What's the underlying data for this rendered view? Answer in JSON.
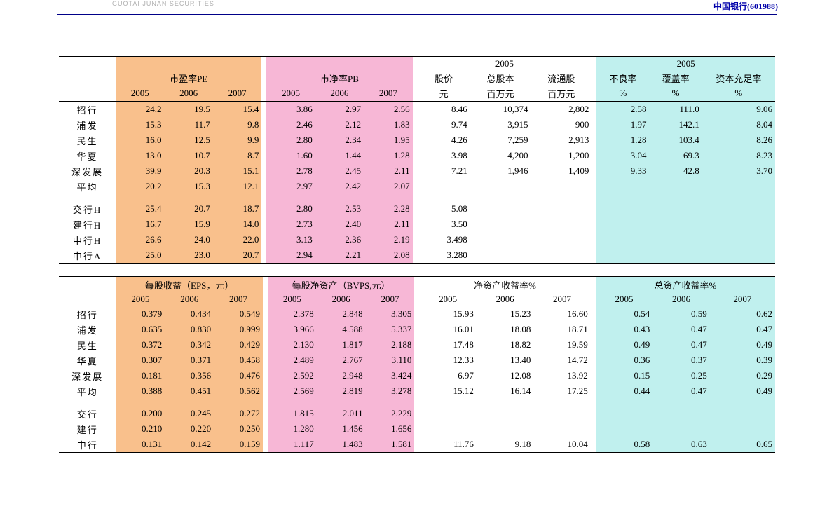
{
  "header": {
    "logo_text": "GUOTAI JUNAN SECURITIES",
    "stock_label": "中国银行(601988)"
  },
  "colors": {
    "orange": "#f9c08c",
    "pink": "#f7b7d6",
    "cyan": "#c0f0ee",
    "rule": "#000088"
  },
  "table1": {
    "sections": {
      "pe": {
        "label": "市盈率PE",
        "years": [
          "2005",
          "2006",
          "2007"
        ]
      },
      "pb": {
        "label": "市净率PB",
        "years": [
          "2005",
          "2006",
          "2007"
        ]
      },
      "mid": {
        "supertitle": "2005",
        "cols": [
          "股价",
          "总股本",
          "流通股"
        ],
        "units": [
          "元",
          "百万元",
          "百万元"
        ]
      },
      "r05": {
        "supertitle": "2005",
        "cols": [
          "不良率",
          "覆盖率",
          "资本充足率"
        ],
        "units": [
          "%",
          "%",
          "%"
        ]
      }
    },
    "rows": [
      {
        "name": "招行",
        "pe": [
          "24.2",
          "19.5",
          "15.4"
        ],
        "pb": [
          "3.86",
          "2.97",
          "2.56"
        ],
        "mid": [
          "8.46",
          "10,374",
          "2,802"
        ],
        "r": [
          "2.58",
          "111.0",
          "9.06"
        ]
      },
      {
        "name": "浦发",
        "pe": [
          "15.3",
          "11.7",
          "9.8"
        ],
        "pb": [
          "2.46",
          "2.12",
          "1.83"
        ],
        "mid": [
          "9.74",
          "3,915",
          "900"
        ],
        "r": [
          "1.97",
          "142.1",
          "8.04"
        ]
      },
      {
        "name": "民生",
        "pe": [
          "16.0",
          "12.5",
          "9.9"
        ],
        "pb": [
          "2.80",
          "2.34",
          "1.95"
        ],
        "mid": [
          "4.26",
          "7,259",
          "2,913"
        ],
        "r": [
          "1.28",
          "103.4",
          "8.26"
        ]
      },
      {
        "name": "华夏",
        "pe": [
          "13.0",
          "10.7",
          "8.7"
        ],
        "pb": [
          "1.60",
          "1.44",
          "1.28"
        ],
        "mid": [
          "3.98",
          "4,200",
          "1,200"
        ],
        "r": [
          "3.04",
          "69.3",
          "8.23"
        ]
      },
      {
        "name": "深发展",
        "pe": [
          "39.9",
          "20.3",
          "15.1"
        ],
        "pb": [
          "2.78",
          "2.45",
          "2.11"
        ],
        "mid": [
          "7.21",
          "1,946",
          "1,409"
        ],
        "r": [
          "9.33",
          "42.8",
          "3.70"
        ]
      },
      {
        "name": "平均",
        "pe": [
          "20.2",
          "15.3",
          "12.1"
        ],
        "pb": [
          "2.97",
          "2.42",
          "2.07"
        ],
        "mid": [
          "",
          "",
          ""
        ],
        "r": [
          "",
          "",
          ""
        ]
      },
      {
        "gap": true
      },
      {
        "name": "交行H",
        "pe": [
          "25.4",
          "20.7",
          "18.7"
        ],
        "pb": [
          "2.80",
          "2.53",
          "2.28"
        ],
        "mid": [
          "5.08",
          "",
          ""
        ],
        "r": [
          "",
          "",
          ""
        ]
      },
      {
        "name": "建行H",
        "pe": [
          "16.7",
          "15.9",
          "14.0"
        ],
        "pb": [
          "2.73",
          "2.40",
          "2.11"
        ],
        "mid": [
          "3.50",
          "",
          ""
        ],
        "r": [
          "",
          "",
          ""
        ]
      },
      {
        "name": "中行H",
        "pe": [
          "26.6",
          "24.0",
          "22.0"
        ],
        "pb": [
          "3.13",
          "2.36",
          "2.19"
        ],
        "mid": [
          "3.498",
          "",
          ""
        ],
        "r": [
          "",
          "",
          ""
        ]
      },
      {
        "name": "中行A",
        "pe": [
          "25.0",
          "23.0",
          "20.7"
        ],
        "pb": [
          "2.94",
          "2.21",
          "2.08"
        ],
        "mid": [
          "3.280",
          "",
          ""
        ],
        "r": [
          "",
          "",
          ""
        ]
      }
    ]
  },
  "table2": {
    "sections": {
      "eps": {
        "label": "每股收益（EPS，元）",
        "years": [
          "2005",
          "2006",
          "2007"
        ]
      },
      "bvps": {
        "label": "每股净资产（BVPS,元）",
        "years": [
          "2005",
          "2006",
          "2007"
        ]
      },
      "roe": {
        "label": "净资产收益率%",
        "years": [
          "2005",
          "2006",
          "2007"
        ]
      },
      "roa": {
        "label": "总资产收益率%",
        "years": [
          "2005",
          "2006",
          "2007"
        ]
      }
    },
    "rows": [
      {
        "name": "招行",
        "eps": [
          "0.379",
          "0.434",
          "0.549"
        ],
        "bvps": [
          "2.378",
          "2.848",
          "3.305"
        ],
        "roe": [
          "15.93",
          "15.23",
          "16.60"
        ],
        "roa": [
          "0.54",
          "0.59",
          "0.62"
        ]
      },
      {
        "name": "浦发",
        "eps": [
          "0.635",
          "0.830",
          "0.999"
        ],
        "bvps": [
          "3.966",
          "4.588",
          "5.337"
        ],
        "roe": [
          "16.01",
          "18.08",
          "18.71"
        ],
        "roa": [
          "0.43",
          "0.47",
          "0.47"
        ]
      },
      {
        "name": "民生",
        "eps": [
          "0.372",
          "0.342",
          "0.429"
        ],
        "bvps": [
          "2.130",
          "1.817",
          "2.188"
        ],
        "roe": [
          "17.48",
          "18.82",
          "19.59"
        ],
        "roa": [
          "0.49",
          "0.47",
          "0.49"
        ]
      },
      {
        "name": "华夏",
        "eps": [
          "0.307",
          "0.371",
          "0.458"
        ],
        "bvps": [
          "2.489",
          "2.767",
          "3.110"
        ],
        "roe": [
          "12.33",
          "13.40",
          "14.72"
        ],
        "roa": [
          "0.36",
          "0.37",
          "0.39"
        ]
      },
      {
        "name": "深发展",
        "eps": [
          "0.181",
          "0.356",
          "0.476"
        ],
        "bvps": [
          "2.592",
          "2.948",
          "3.424"
        ],
        "roe": [
          "6.97",
          "12.08",
          "13.92"
        ],
        "roa": [
          "0.15",
          "0.25",
          "0.29"
        ]
      },
      {
        "name": "平均",
        "eps": [
          "0.388",
          "0.451",
          "0.562"
        ],
        "bvps": [
          "2.569",
          "2.819",
          "3.278"
        ],
        "roe": [
          "15.12",
          "16.14",
          "17.25"
        ],
        "roa": [
          "0.44",
          "0.47",
          "0.49"
        ]
      },
      {
        "gap": true
      },
      {
        "name": "交行",
        "eps": [
          "0.200",
          "0.245",
          "0.272"
        ],
        "bvps": [
          "1.815",
          "2.011",
          "2.229"
        ],
        "roe": [
          "",
          "",
          ""
        ],
        "roa": [
          "",
          "",
          ""
        ]
      },
      {
        "name": "建行",
        "eps": [
          "0.210",
          "0.220",
          "0.250"
        ],
        "bvps": [
          "1.280",
          "1.456",
          "1.656"
        ],
        "roe": [
          "",
          "",
          ""
        ],
        "roa": [
          "",
          "",
          ""
        ]
      },
      {
        "name": "中行",
        "eps": [
          "0.131",
          "0.142",
          "0.159"
        ],
        "bvps": [
          "1.117",
          "1.483",
          "1.581"
        ],
        "roe": [
          "11.76",
          "9.18",
          "10.04"
        ],
        "roa": [
          "0.58",
          "0.63",
          "0.65"
        ]
      }
    ]
  }
}
